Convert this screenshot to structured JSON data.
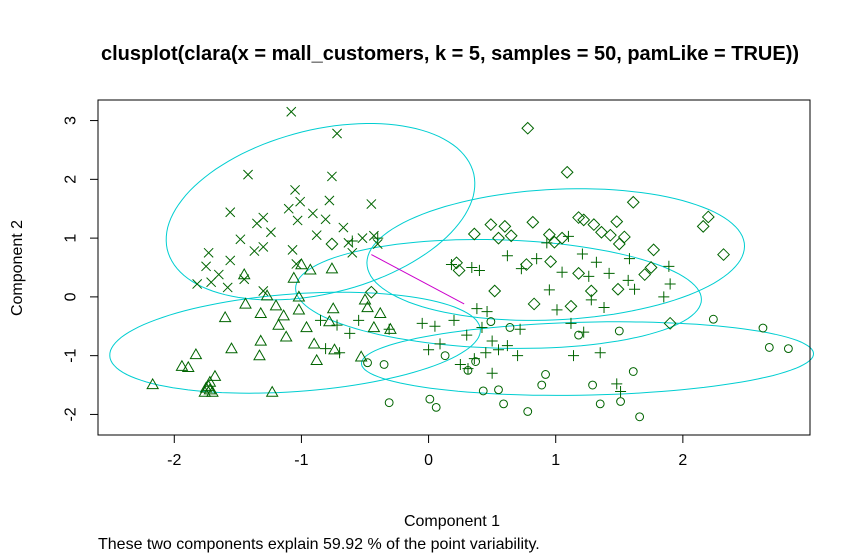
{
  "chart_data": {
    "type": "scatter",
    "title": "clusplot(clara(x = mall_customers, k = 5, samples = 50, pamLike = TRUE))",
    "xlabel": "Component 1",
    "ylabel": "Component 2",
    "subtitle": "These two components explain 59.92 % of the point variability.",
    "xlim": [
      -2.6,
      3.0
    ],
    "ylim": [
      -2.35,
      3.35
    ],
    "xticks": [
      "-2",
      "-1",
      "0",
      "1",
      "2"
    ],
    "yticks": [
      "-2",
      "-1",
      "0",
      "1",
      "2",
      "3"
    ],
    "grid": false,
    "legend": "none",
    "colors": {
      "points": "#006400",
      "ellipses": "#00CED1",
      "line": "#CC00CC",
      "axes": "#000000"
    },
    "clusters": [
      {
        "marker": "x",
        "center": [
          -0.85,
          1.45
        ],
        "a": 1.6,
        "b": 1.08,
        "angle_deg": 62,
        "points": [
          [
            -1.08,
            3.15
          ],
          [
            -0.72,
            2.78
          ],
          [
            -0.76,
            2.05
          ],
          [
            -1.42,
            2.08
          ],
          [
            -1.05,
            1.82
          ],
          [
            -1.01,
            1.62
          ],
          [
            -0.78,
            1.64
          ],
          [
            -1.1,
            1.5
          ],
          [
            -0.91,
            1.42
          ],
          [
            -0.45,
            1.58
          ],
          [
            -1.3,
            1.35
          ],
          [
            -1.56,
            1.44
          ],
          [
            -1.03,
            1.3
          ],
          [
            -0.81,
            1.32
          ],
          [
            -1.35,
            1.25
          ],
          [
            -0.67,
            1.18
          ],
          [
            -1.24,
            1.1
          ],
          [
            -0.88,
            1.05
          ],
          [
            -1.48,
            0.98
          ],
          [
            -0.52,
            1.0
          ],
          [
            -0.43,
            1.04
          ],
          [
            -1.3,
            0.85
          ],
          [
            -1.07,
            0.8
          ],
          [
            -1.37,
            0.78
          ],
          [
            -1.73,
            0.75
          ],
          [
            -0.63,
            0.92
          ],
          [
            -0.4,
            0.9
          ],
          [
            -1.56,
            0.62
          ],
          [
            -1.75,
            0.52
          ],
          [
            -1.65,
            0.38
          ],
          [
            -1.45,
            0.3
          ],
          [
            -1.71,
            0.25
          ],
          [
            -1.82,
            0.22
          ],
          [
            -1.58,
            0.16
          ],
          [
            -1.3,
            0.1
          ],
          [
            -1.04,
            0.56
          ],
          [
            -0.6,
            0.75
          ]
        ]
      },
      {
        "marker": "diamond",
        "center": [
          1.0,
          0.72
        ],
        "a": 1.5,
        "b": 1.1,
        "angle_deg": 12,
        "points": [
          [
            0.78,
            2.87
          ],
          [
            1.09,
            2.12
          ],
          [
            1.61,
            1.61
          ],
          [
            1.18,
            1.35
          ],
          [
            1.22,
            1.31
          ],
          [
            1.3,
            1.23
          ],
          [
            1.48,
            1.28
          ],
          [
            0.49,
            1.23
          ],
          [
            0.6,
            1.2
          ],
          [
            0.82,
            1.27
          ],
          [
            0.95,
            1.06
          ],
          [
            0.65,
            1.04
          ],
          [
            0.36,
            1.07
          ],
          [
            0.55,
            1.0
          ],
          [
            0.99,
            0.93
          ],
          [
            1.05,
            1.0
          ],
          [
            1.36,
            1.1
          ],
          [
            1.43,
            1.05
          ],
          [
            1.54,
            1.02
          ],
          [
            1.5,
            0.9
          ],
          [
            2.16,
            1.2
          ],
          [
            2.2,
            1.36
          ],
          [
            1.77,
            0.8
          ],
          [
            2.32,
            0.72
          ],
          [
            0.77,
            0.55
          ],
          [
            0.96,
            0.6
          ],
          [
            1.18,
            0.4
          ],
          [
            0.22,
            0.58
          ],
          [
            0.24,
            0.45
          ],
          [
            1.75,
            0.5
          ],
          [
            1.7,
            0.38
          ],
          [
            1.49,
            0.13
          ],
          [
            1.28,
            0.1
          ],
          [
            0.52,
            0.1
          ],
          [
            0.83,
            -0.12
          ],
          [
            1.12,
            -0.16
          ],
          [
            1.9,
            -0.45
          ],
          [
            -0.76,
            0.9
          ],
          [
            -0.45,
            0.08
          ]
        ]
      },
      {
        "marker": "plus",
        "center": [
          0.55,
          0.05
        ],
        "a": 1.6,
        "b": 0.92,
        "angle_deg": -5,
        "points": [
          [
            0.93,
            0.92
          ],
          [
            1.1,
            1.03
          ],
          [
            -0.6,
            0.95
          ],
          [
            -0.4,
            1.0
          ],
          [
            0.62,
            0.7
          ],
          [
            0.85,
            0.65
          ],
          [
            1.21,
            0.73
          ],
          [
            1.32,
            0.59
          ],
          [
            1.58,
            0.65
          ],
          [
            1.89,
            0.52
          ],
          [
            0.18,
            0.55
          ],
          [
            0.34,
            0.5
          ],
          [
            1.05,
            0.42
          ],
          [
            1.26,
            0.35
          ],
          [
            0.4,
            0.45
          ],
          [
            0.73,
            0.48
          ],
          [
            1.42,
            0.4
          ],
          [
            1.57,
            0.28
          ],
          [
            1.9,
            0.22
          ],
          [
            1.85,
            0.0
          ],
          [
            1.62,
            0.13
          ],
          [
            0.95,
            0.12
          ],
          [
            1.28,
            -0.05
          ],
          [
            0.38,
            -0.2
          ],
          [
            0.46,
            -0.25
          ],
          [
            1.01,
            -0.22
          ],
          [
            1.38,
            -0.18
          ],
          [
            0.2,
            -0.4
          ],
          [
            -0.05,
            -0.45
          ],
          [
            0.05,
            -0.5
          ],
          [
            0.42,
            -0.52
          ],
          [
            0.72,
            -0.55
          ],
          [
            1.12,
            -0.45
          ],
          [
            1.22,
            -0.6
          ],
          [
            0.3,
            -0.65
          ],
          [
            0.5,
            -0.75
          ],
          [
            0.55,
            -0.9
          ],
          [
            0.62,
            -0.83
          ],
          [
            0.09,
            -0.8
          ],
          [
            0.0,
            -0.9
          ],
          [
            -0.31,
            -0.55
          ],
          [
            -0.55,
            -0.4
          ],
          [
            -0.62,
            -0.62
          ],
          [
            -0.72,
            -0.48
          ],
          [
            -0.85,
            -0.4
          ],
          [
            -0.81,
            -0.88
          ],
          [
            -0.7,
            -0.95
          ],
          [
            0.36,
            -1.05
          ],
          [
            0.45,
            -0.95
          ],
          [
            0.7,
            -1.0
          ],
          [
            1.14,
            -1.0
          ],
          [
            1.35,
            -0.95
          ],
          [
            0.25,
            -1.15
          ],
          [
            0.31,
            -1.22
          ],
          [
            0.5,
            -1.3
          ],
          [
            1.48,
            -1.48
          ],
          [
            1.51,
            -1.61
          ]
        ]
      },
      {
        "marker": "triangle",
        "center": [
          -1.05,
          -0.78
        ],
        "a": 1.48,
        "b": 0.82,
        "angle_deg": 12,
        "points": [
          [
            -0.76,
            0.48
          ],
          [
            -0.93,
            0.46
          ],
          [
            -1.0,
            0.55
          ],
          [
            -1.45,
            0.38
          ],
          [
            -1.06,
            0.32
          ],
          [
            -1.27,
            0.02
          ],
          [
            -1.02,
            0.0
          ],
          [
            -1.44,
            -0.12
          ],
          [
            -1.2,
            -0.15
          ],
          [
            -1.02,
            -0.22
          ],
          [
            -0.75,
            -0.2
          ],
          [
            -0.5,
            -0.05
          ],
          [
            -0.48,
            -0.18
          ],
          [
            -0.38,
            -0.28
          ],
          [
            -1.32,
            -0.28
          ],
          [
            -1.14,
            -0.32
          ],
          [
            -1.6,
            -0.35
          ],
          [
            -1.18,
            -0.48
          ],
          [
            -0.78,
            -0.42
          ],
          [
            -0.96,
            -0.52
          ],
          [
            -0.43,
            -0.52
          ],
          [
            -0.3,
            -0.55
          ],
          [
            -1.55,
            -0.88
          ],
          [
            -1.32,
            -0.75
          ],
          [
            -1.12,
            -0.68
          ],
          [
            -0.9,
            -0.8
          ],
          [
            -0.74,
            -0.9
          ],
          [
            -1.33,
            -1.0
          ],
          [
            -0.53,
            -1.02
          ],
          [
            -0.88,
            -1.08
          ],
          [
            -1.83,
            -0.98
          ],
          [
            -1.94,
            -1.18
          ],
          [
            -1.89,
            -1.2
          ],
          [
            -1.68,
            -1.35
          ],
          [
            -1.72,
            -1.45
          ],
          [
            -1.75,
            -1.55
          ],
          [
            -1.72,
            -1.58
          ],
          [
            -1.7,
            -1.62
          ],
          [
            -1.76,
            -1.62
          ],
          [
            -1.73,
            -1.52
          ],
          [
            -1.23,
            -1.62
          ],
          [
            -2.17,
            -1.49
          ]
        ]
      },
      {
        "marker": "circle",
        "center": [
          1.25,
          -1.05
        ],
        "a": 1.78,
        "b": 0.62,
        "angle_deg": 3,
        "points": [
          [
            2.63,
            -0.53
          ],
          [
            2.24,
            -0.38
          ],
          [
            2.68,
            -0.86
          ],
          [
            2.83,
            -0.88
          ],
          [
            1.5,
            -0.58
          ],
          [
            1.18,
            -0.65
          ],
          [
            0.49,
            -0.42
          ],
          [
            0.64,
            -0.52
          ],
          [
            1.61,
            -1.27
          ],
          [
            1.29,
            -1.5
          ],
          [
            1.66,
            -2.04
          ],
          [
            1.35,
            -1.82
          ],
          [
            1.51,
            -1.78
          ],
          [
            0.89,
            -1.5
          ],
          [
            0.92,
            -1.32
          ],
          [
            0.55,
            -1.58
          ],
          [
            0.43,
            -1.6
          ],
          [
            0.59,
            -1.82
          ],
          [
            0.78,
            -1.95
          ],
          [
            0.06,
            -1.88
          ],
          [
            0.01,
            -1.74
          ],
          [
            -0.31,
            -1.8
          ],
          [
            -0.35,
            -1.15
          ],
          [
            -0.48,
            -1.12
          ],
          [
            0.31,
            -1.25
          ],
          [
            0.13,
            -1.0
          ],
          [
            0.37,
            -1.1
          ]
        ]
      }
    ],
    "medoid_line": [
      [
        -0.45,
        0.72
      ],
      [
        0.28,
        -0.12
      ]
    ]
  }
}
